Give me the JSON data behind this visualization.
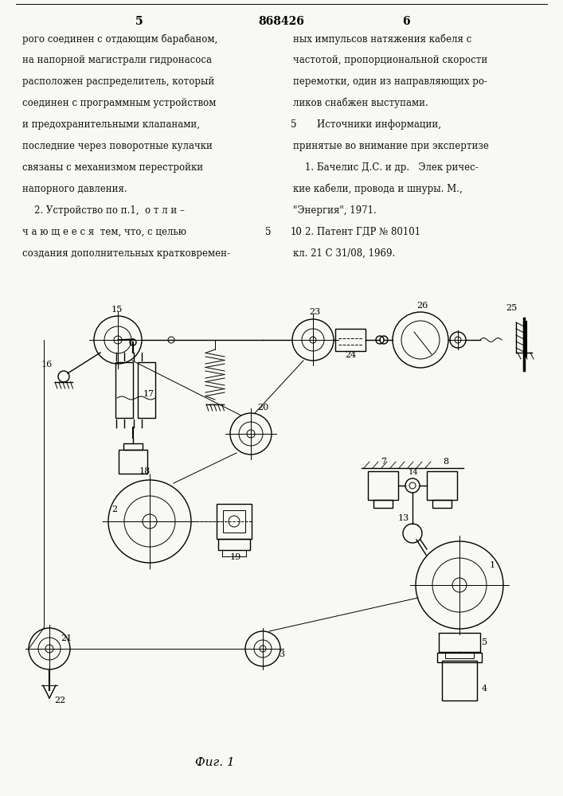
{
  "page_number_left": "5",
  "page_number_center": "868426",
  "page_number_right": "6",
  "text_left": [
    "рого соединен с отдающим барабаном,",
    "на напорной магистрали гидронасоса",
    "расположен распределитель, который",
    "соединен с программным устройством",
    "и предохранительными клапанами,",
    "последние через поворотные кулачки",
    "связаны с механизмом перестройки",
    "напорного давления.",
    "    2. Устройство по п.1,  о т л и –",
    "ч а ю щ е е с я  тем, что, с целью",
    "создания дополнительных кратковремен-"
  ],
  "text_right": [
    "ных импульсов натяжения кабеля с",
    "частотой, пропорциональной скорости",
    "перемотки, один из направляющих ро-",
    "ликов снабжен выступами.",
    "        Источники информации,",
    "принятые во внимание при экспертизе",
    "    1. Бачелис Д.С. и др.   Элек ричес-",
    "кие кабели, провода и шнуры. М.,",
    "\"Энергия\", 1971.",
    "    2. Патент ГДР № 80101",
    "кл. 21 С 31/08, 1969."
  ],
  "line_numbers_left": [
    "",
    "",
    "",
    "",
    "",
    "",
    "",
    "",
    "",
    "5",
    ""
  ],
  "line_numbers_right": [
    "",
    "",
    "",
    "",
    "5",
    "",
    "",
    "",
    "",
    "10",
    ""
  ],
  "fig_caption": "Фиг. 1",
  "bg": "#f8f8f5"
}
